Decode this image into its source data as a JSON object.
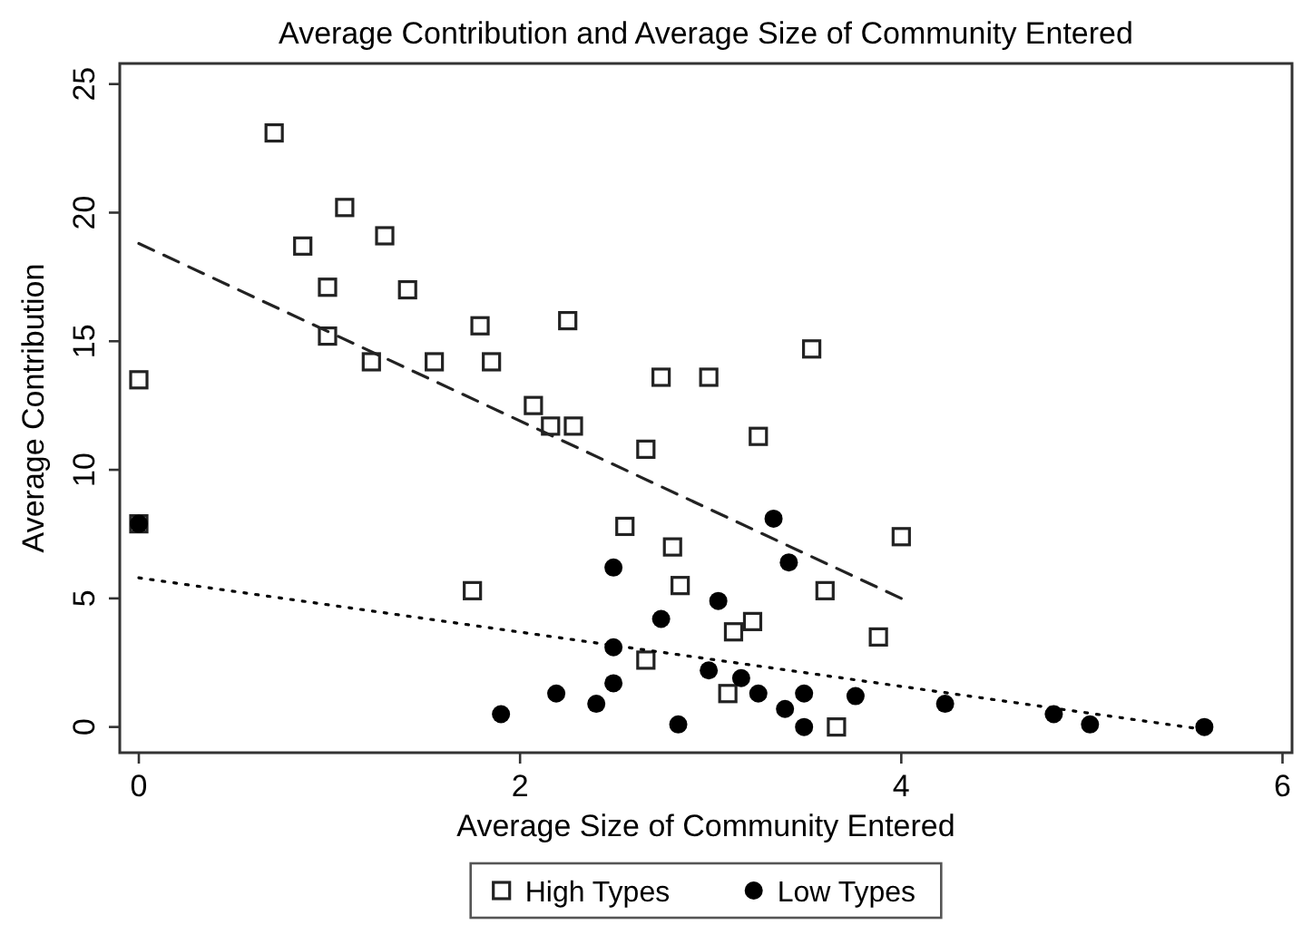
{
  "chart_data": {
    "type": "scatter",
    "title": "Average Contribution and Average Size of Community Entered",
    "xlabel": "Average Size of Community Entered",
    "ylabel": "Average Contribution",
    "xlim": [
      -0.1,
      6.05
    ],
    "ylim": [
      -1,
      25.8
    ],
    "xticks": [
      0,
      2,
      4,
      6
    ],
    "yticks": [
      0,
      5,
      10,
      15,
      20,
      25
    ],
    "legend": "bottom",
    "series": [
      {
        "name": "High Types",
        "type": "scatter",
        "marker": "square",
        "color": "#222222",
        "x": [
          0,
          0.71,
          1.08,
          0.86,
          1.29,
          0.99,
          1.41,
          0.99,
          1.22,
          1.55,
          1.79,
          2.25,
          1.85,
          3.53,
          2.74,
          2.99,
          2.07,
          2.16,
          2.28,
          3.25,
          2.66,
          2.55,
          2.8,
          4.0,
          1.75,
          2.84,
          3.6,
          3.12,
          3.22,
          3.88,
          2.66,
          3.09,
          3.66,
          0
        ],
        "values": [
          13.5,
          23.1,
          20.2,
          18.7,
          19.1,
          17.1,
          17.0,
          15.2,
          14.2,
          14.2,
          15.6,
          15.8,
          14.2,
          14.7,
          13.6,
          13.6,
          12.5,
          11.7,
          11.7,
          11.3,
          10.8,
          7.8,
          7.0,
          7.4,
          5.3,
          5.5,
          5.3,
          3.7,
          4.1,
          3.5,
          2.6,
          1.3,
          0.0,
          7.9
        ]
      },
      {
        "name": "Low Types",
        "type": "scatter",
        "marker": "circle",
        "color": "#000000",
        "x": [
          0,
          3.33,
          3.41,
          2.49,
          3.04,
          2.74,
          2.49,
          2.99,
          3.16,
          2.49,
          2.19,
          3.25,
          3.49,
          3.76,
          2.4,
          3.39,
          1.9,
          2.83,
          3.49,
          4.23,
          4.8,
          4.99,
          5.59
        ],
        "values": [
          7.9,
          8.1,
          6.4,
          6.2,
          4.9,
          4.2,
          3.1,
          2.2,
          1.9,
          1.7,
          1.3,
          1.3,
          1.3,
          1.2,
          0.9,
          0.7,
          0.5,
          0.1,
          0.0,
          0.9,
          0.5,
          0.1,
          0.0
        ]
      },
      {
        "type": "line",
        "line_style": "dashed",
        "marker": "none",
        "color": "#222222",
        "x": [
          0,
          4.0
        ],
        "values": [
          18.8,
          5.0
        ]
      },
      {
        "type": "line",
        "line_style": "dotted",
        "marker": "none",
        "color": "#000000",
        "x": [
          0,
          5.59
        ],
        "values": [
          5.8,
          -0.1
        ]
      }
    ]
  }
}
